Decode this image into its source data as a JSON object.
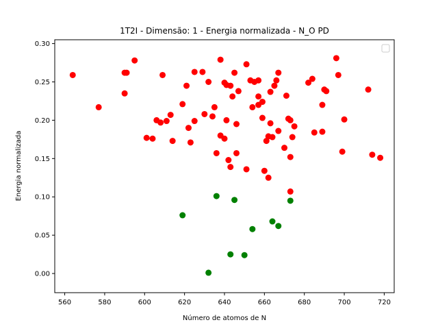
{
  "chart_data": {
    "type": "scatter",
    "title": "1T2I - Dimensão: 1 - Energia normalizada - N_O PD",
    "xlabel": "Número de atomos de N",
    "ylabel": "Energia normalizada",
    "xlim": [
      555,
      725
    ],
    "ylim": [
      -0.025,
      0.305
    ],
    "xticks": [
      560,
      580,
      600,
      620,
      640,
      660,
      680,
      700,
      720
    ],
    "yticks": [
      0.0,
      0.05,
      0.1,
      0.15,
      0.2,
      0.25,
      0.3
    ],
    "ytick_labels": [
      "0.00",
      "0.05",
      "0.10",
      "0.15",
      "0.20",
      "0.25",
      "0.30"
    ],
    "grid": false,
    "legend": {
      "placement": "top-right",
      "entries": []
    },
    "series": [
      {
        "color": "#ff0000",
        "points": [
          [
            564,
            0.259
          ],
          [
            577,
            0.217
          ],
          [
            590,
            0.235
          ],
          [
            590,
            0.262
          ],
          [
            591,
            0.262
          ],
          [
            595,
            0.278
          ],
          [
            601,
            0.177
          ],
          [
            604,
            0.176
          ],
          [
            606,
            0.2
          ],
          [
            608,
            0.197
          ],
          [
            609,
            0.259
          ],
          [
            611,
            0.199
          ],
          [
            613,
            0.207
          ],
          [
            614,
            0.173
          ],
          [
            619,
            0.221
          ],
          [
            621,
            0.245
          ],
          [
            622,
            0.19
          ],
          [
            623,
            0.171
          ],
          [
            625,
            0.199
          ],
          [
            625,
            0.263
          ],
          [
            629,
            0.263
          ],
          [
            630,
            0.208
          ],
          [
            632,
            0.25
          ],
          [
            634,
            0.205
          ],
          [
            635,
            0.217
          ],
          [
            636,
            0.157
          ],
          [
            638,
            0.18
          ],
          [
            638,
            0.279
          ],
          [
            640,
            0.176
          ],
          [
            640,
            0.249
          ],
          [
            641,
            0.2
          ],
          [
            641,
            0.246
          ],
          [
            642,
            0.148
          ],
          [
            643,
            0.245
          ],
          [
            643,
            0.139
          ],
          [
            644,
            0.231
          ],
          [
            645,
            0.262
          ],
          [
            646,
            0.157
          ],
          [
            646,
            0.195
          ],
          [
            647,
            0.238
          ],
          [
            651,
            0.136
          ],
          [
            651,
            0.273
          ],
          [
            653,
            0.252
          ],
          [
            654,
            0.217
          ],
          [
            655,
            0.25
          ],
          [
            657,
            0.252
          ],
          [
            657,
            0.231
          ],
          [
            657,
            0.22
          ],
          [
            659,
            0.224
          ],
          [
            659,
            0.203
          ],
          [
            660,
            0.134
          ],
          [
            661,
            0.173
          ],
          [
            662,
            0.179
          ],
          [
            662,
            0.125
          ],
          [
            663,
            0.237
          ],
          [
            663,
            0.196
          ],
          [
            664,
            0.178
          ],
          [
            665,
            0.245
          ],
          [
            666,
            0.252
          ],
          [
            667,
            0.186
          ],
          [
            667,
            0.262
          ],
          [
            670,
            0.164
          ],
          [
            671,
            0.232
          ],
          [
            672,
            0.202
          ],
          [
            673,
            0.2
          ],
          [
            673,
            0.152
          ],
          [
            673,
            0.107
          ],
          [
            674,
            0.178
          ],
          [
            675,
            0.192
          ],
          [
            682,
            0.249
          ],
          [
            684,
            0.254
          ],
          [
            685,
            0.184
          ],
          [
            689,
            0.22
          ],
          [
            689,
            0.185
          ],
          [
            690,
            0.24
          ],
          [
            691,
            0.238
          ],
          [
            696,
            0.281
          ],
          [
            697,
            0.259
          ],
          [
            699,
            0.159
          ],
          [
            700,
            0.201
          ],
          [
            712,
            0.24
          ],
          [
            714,
            0.155
          ],
          [
            718,
            0.151
          ]
        ]
      },
      {
        "color": "#008000",
        "points": [
          [
            619,
            0.076
          ],
          [
            632,
            0.001
          ],
          [
            636,
            0.101
          ],
          [
            643,
            0.025
          ],
          [
            645,
            0.096
          ],
          [
            650,
            0.024
          ],
          [
            654,
            0.058
          ],
          [
            664,
            0.068
          ],
          [
            667,
            0.062
          ],
          [
            673,
            0.095
          ]
        ]
      }
    ]
  }
}
